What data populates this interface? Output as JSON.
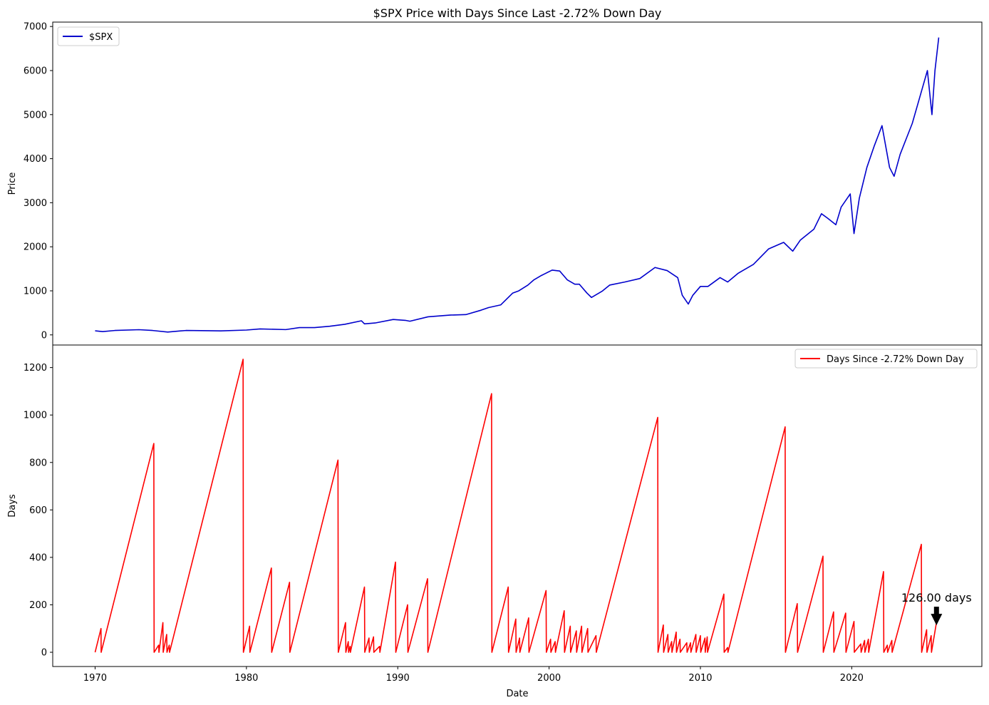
{
  "title": "$SPX Price with Days Since Last -2.72% Down Day",
  "chart_data": [
    {
      "type": "line",
      "title": "$SPX Price with Days Since Last -2.72% Down Day",
      "xlabel": "",
      "ylabel": "Price",
      "xlim": [
        1967.2,
        2028.6
      ],
      "ylim": [
        -230,
        7100
      ],
      "yticks": [
        0,
        1000,
        2000,
        3000,
        4000,
        5000,
        6000,
        7000
      ],
      "grid": false,
      "legend": "top-left",
      "series": [
        {
          "name": "$SPX",
          "color": "#0000cc",
          "x": [
            1970.0,
            1970.5,
            1971.3,
            1972.9,
            1973.8,
            1974.8,
            1976.0,
            1977.5,
            1978.3,
            1980.0,
            1980.9,
            1982.6,
            1983.5,
            1984.5,
            1985.5,
            1986.5,
            1987.6,
            1987.8,
            1988.5,
            1989.7,
            1990.5,
            1990.8,
            1992.0,
            1993.5,
            1994.5,
            1995.5,
            1996.0,
            1996.8,
            1997.6,
            1998.0,
            1998.6,
            1999.0,
            1999.5,
            2000.2,
            2000.7,
            2001.2,
            2001.7,
            2002.0,
            2002.5,
            2002.8,
            2003.5,
            2004.0,
            2005.0,
            2006.0,
            2007.0,
            2007.8,
            2008.5,
            2008.8,
            2009.2,
            2009.5,
            2010.0,
            2010.5,
            2011.3,
            2011.8,
            2012.5,
            2013.5,
            2014.5,
            2015.5,
            2016.1,
            2016.6,
            2017.5,
            2018.0,
            2018.4,
            2018.95,
            2019.3,
            2019.9,
            2020.15,
            2020.5,
            2021.0,
            2021.5,
            2022.0,
            2022.5,
            2022.8,
            2023.2,
            2023.6,
            2024.0,
            2024.5,
            2025.0,
            2025.3,
            2025.5,
            2025.75
          ],
          "y": [
            92,
            75,
            100,
            118,
            100,
            65,
            100,
            95,
            90,
            110,
            135,
            120,
            165,
            165,
            195,
            240,
            320,
            250,
            270,
            350,
            330,
            310,
            410,
            450,
            460,
            560,
            620,
            680,
            950,
            1000,
            1130,
            1250,
            1350,
            1470,
            1450,
            1250,
            1150,
            1150,
            950,
            850,
            990,
            1130,
            1200,
            1280,
            1530,
            1460,
            1300,
            900,
            700,
            900,
            1100,
            1100,
            1300,
            1200,
            1400,
            1600,
            1950,
            2100,
            1900,
            2150,
            2400,
            2750,
            2650,
            2500,
            2900,
            3200,
            2300,
            3100,
            3800,
            4300,
            4750,
            3800,
            3600,
            4100,
            4450,
            4800,
            5400,
            6000,
            5000,
            6000,
            6750
          ]
        }
      ]
    },
    {
      "type": "line",
      "title": "",
      "xlabel": "Date",
      "ylabel": "Days",
      "xlim": [
        1967.2,
        2028.6
      ],
      "ylim": [
        -60,
        1295
      ],
      "xticks": [
        1970,
        1980,
        1990,
        2000,
        2010,
        2020
      ],
      "yticks": [
        0,
        200,
        400,
        600,
        800,
        1000,
        1200
      ],
      "grid": false,
      "legend": "top-right",
      "series": [
        {
          "name": "Days Since -2.72% Down Day",
          "color": "#ff0000",
          "x": [
            1970.0,
            1970.39,
            1970.4,
            1973.88,
            1973.9,
            1974.2,
            1974.22,
            1974.48,
            1974.5,
            1974.73,
            1974.75,
            1974.9,
            1974.92,
            1979.78,
            1979.8,
            1980.21,
            1980.23,
            1981.65,
            1981.67,
            1982.85,
            1982.87,
            1986.05,
            1986.07,
            1986.55,
            1986.57,
            1986.73,
            1986.75,
            1986.85,
            1986.87,
            1987.8,
            1987.82,
            1988.1,
            1988.12,
            1988.4,
            1988.42,
            1988.8,
            1988.82,
            1989.85,
            1989.87,
            1990.65,
            1990.67,
            1991.97,
            1991.99,
            1996.2,
            1996.22,
            1997.3,
            1997.32,
            1997.8,
            1997.82,
            1998.05,
            1998.07,
            1998.65,
            1998.67,
            1999.8,
            1999.82,
            2000.1,
            2000.12,
            2000.4,
            2000.42,
            2001.0,
            2001.02,
            2001.4,
            2001.42,
            2001.8,
            2001.82,
            2002.15,
            2002.17,
            2002.55,
            2002.57,
            2003.1,
            2003.12,
            2007.18,
            2007.2,
            2007.55,
            2007.57,
            2007.85,
            2007.87,
            2008.1,
            2008.12,
            2008.4,
            2008.42,
            2008.65,
            2008.67,
            2009.1,
            2009.12,
            2009.35,
            2009.37,
            2009.7,
            2009.72,
            2010.0,
            2010.02,
            2010.3,
            2010.32,
            2010.45,
            2010.47,
            2011.55,
            2011.57,
            2011.8,
            2011.82,
            2015.6,
            2015.62,
            2016.4,
            2016.42,
            2018.1,
            2018.12,
            2018.8,
            2018.82,
            2019.6,
            2019.62,
            2020.15,
            2020.17,
            2020.6,
            2020.62,
            2020.85,
            2020.87,
            2021.1,
            2021.12,
            2022.1,
            2022.12,
            2022.35,
            2022.37,
            2022.65,
            2022.67,
            2024.6,
            2024.62,
            2024.95,
            2024.97,
            2025.25,
            2025.27,
            2025.6
          ],
          "y": [
            0,
            100,
            0,
            880,
            0,
            30,
            0,
            125,
            0,
            75,
            0,
            30,
            0,
            1235,
            0,
            110,
            0,
            355,
            0,
            295,
            0,
            810,
            0,
            125,
            0,
            45,
            0,
            25,
            0,
            275,
            0,
            60,
            0,
            65,
            0,
            25,
            0,
            380,
            0,
            200,
            0,
            310,
            0,
            1090,
            0,
            275,
            0,
            140,
            0,
            60,
            0,
            145,
            0,
            260,
            0,
            55,
            0,
            45,
            0,
            175,
            0,
            110,
            0,
            90,
            0,
            110,
            0,
            100,
            0,
            70,
            0,
            990,
            0,
            115,
            0,
            75,
            0,
            45,
            0,
            85,
            0,
            55,
            0,
            40,
            0,
            40,
            0,
            75,
            0,
            70,
            0,
            60,
            0,
            65,
            0,
            245,
            0,
            20,
            0,
            950,
            0,
            205,
            0,
            405,
            0,
            170,
            0,
            165,
            0,
            130,
            0,
            35,
            0,
            50,
            0,
            55,
            0,
            340,
            0,
            30,
            0,
            50,
            0,
            455,
            0,
            95,
            0,
            70,
            0,
            126
          ]
        }
      ],
      "annotations": [
        {
          "text": "126.00 days",
          "x": 2025.6,
          "y": 126
        }
      ]
    }
  ]
}
